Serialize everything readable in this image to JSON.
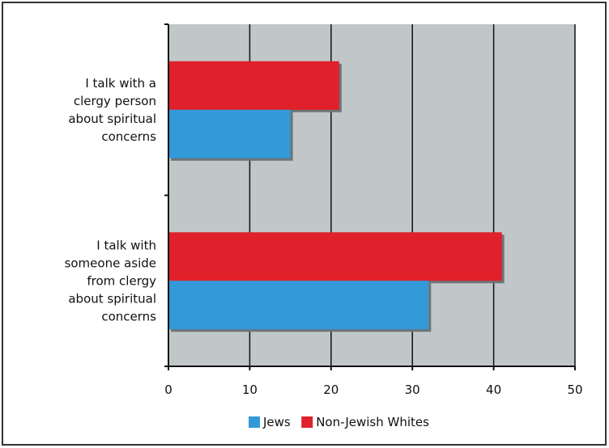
{
  "chart_data": {
    "type": "bar",
    "orientation": "horizontal",
    "categories": [
      [
        "I talk with a",
        "clergy person",
        "about spiritual",
        "concerns"
      ],
      [
        "I talk with",
        "someone aside",
        "from clergy",
        "about spiritual",
        "concerns"
      ]
    ],
    "series": [
      {
        "name": "Jews",
        "color": "#3399d9",
        "values": [
          15,
          32
        ]
      },
      {
        "name": "Non-Jewish Whites",
        "color": "#e0202a",
        "values": [
          21,
          41
        ]
      }
    ],
    "xlim": [
      0,
      50
    ],
    "xticks": [
      0,
      10,
      20,
      30,
      40,
      50
    ],
    "grid": true,
    "plot_background": "#c1c7c9",
    "legend_position": "bottom"
  }
}
